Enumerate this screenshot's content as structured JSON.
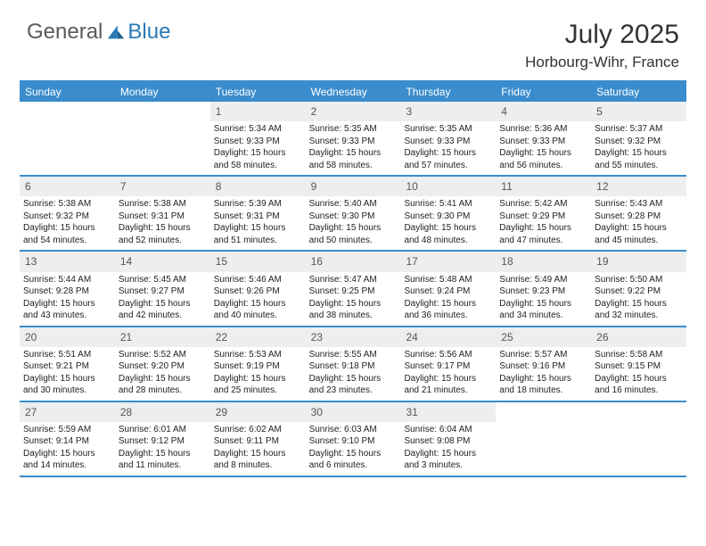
{
  "brand": {
    "general": "General",
    "blue": "Blue"
  },
  "title": {
    "month": "July 2025",
    "location": "Horbourg-Wihr, France"
  },
  "colors": {
    "accent": "#3a8ccc",
    "daynum_bg": "#eceeef",
    "text": "#222222",
    "header_text": "#ffffff"
  },
  "day_headers": [
    "Sunday",
    "Monday",
    "Tuesday",
    "Wednesday",
    "Thursday",
    "Friday",
    "Saturday"
  ],
  "weeks": [
    [
      {
        "empty": true
      },
      {
        "empty": true
      },
      {
        "num": "1",
        "sunrise": "Sunrise: 5:34 AM",
        "sunset": "Sunset: 9:33 PM",
        "daylight1": "Daylight: 15 hours",
        "daylight2": "and 58 minutes."
      },
      {
        "num": "2",
        "sunrise": "Sunrise: 5:35 AM",
        "sunset": "Sunset: 9:33 PM",
        "daylight1": "Daylight: 15 hours",
        "daylight2": "and 58 minutes."
      },
      {
        "num": "3",
        "sunrise": "Sunrise: 5:35 AM",
        "sunset": "Sunset: 9:33 PM",
        "daylight1": "Daylight: 15 hours",
        "daylight2": "and 57 minutes."
      },
      {
        "num": "4",
        "sunrise": "Sunrise: 5:36 AM",
        "sunset": "Sunset: 9:33 PM",
        "daylight1": "Daylight: 15 hours",
        "daylight2": "and 56 minutes."
      },
      {
        "num": "5",
        "sunrise": "Sunrise: 5:37 AM",
        "sunset": "Sunset: 9:32 PM",
        "daylight1": "Daylight: 15 hours",
        "daylight2": "and 55 minutes."
      }
    ],
    [
      {
        "num": "6",
        "sunrise": "Sunrise: 5:38 AM",
        "sunset": "Sunset: 9:32 PM",
        "daylight1": "Daylight: 15 hours",
        "daylight2": "and 54 minutes."
      },
      {
        "num": "7",
        "sunrise": "Sunrise: 5:38 AM",
        "sunset": "Sunset: 9:31 PM",
        "daylight1": "Daylight: 15 hours",
        "daylight2": "and 52 minutes."
      },
      {
        "num": "8",
        "sunrise": "Sunrise: 5:39 AM",
        "sunset": "Sunset: 9:31 PM",
        "daylight1": "Daylight: 15 hours",
        "daylight2": "and 51 minutes."
      },
      {
        "num": "9",
        "sunrise": "Sunrise: 5:40 AM",
        "sunset": "Sunset: 9:30 PM",
        "daylight1": "Daylight: 15 hours",
        "daylight2": "and 50 minutes."
      },
      {
        "num": "10",
        "sunrise": "Sunrise: 5:41 AM",
        "sunset": "Sunset: 9:30 PM",
        "daylight1": "Daylight: 15 hours",
        "daylight2": "and 48 minutes."
      },
      {
        "num": "11",
        "sunrise": "Sunrise: 5:42 AM",
        "sunset": "Sunset: 9:29 PM",
        "daylight1": "Daylight: 15 hours",
        "daylight2": "and 47 minutes."
      },
      {
        "num": "12",
        "sunrise": "Sunrise: 5:43 AM",
        "sunset": "Sunset: 9:28 PM",
        "daylight1": "Daylight: 15 hours",
        "daylight2": "and 45 minutes."
      }
    ],
    [
      {
        "num": "13",
        "sunrise": "Sunrise: 5:44 AM",
        "sunset": "Sunset: 9:28 PM",
        "daylight1": "Daylight: 15 hours",
        "daylight2": "and 43 minutes."
      },
      {
        "num": "14",
        "sunrise": "Sunrise: 5:45 AM",
        "sunset": "Sunset: 9:27 PM",
        "daylight1": "Daylight: 15 hours",
        "daylight2": "and 42 minutes."
      },
      {
        "num": "15",
        "sunrise": "Sunrise: 5:46 AM",
        "sunset": "Sunset: 9:26 PM",
        "daylight1": "Daylight: 15 hours",
        "daylight2": "and 40 minutes."
      },
      {
        "num": "16",
        "sunrise": "Sunrise: 5:47 AM",
        "sunset": "Sunset: 9:25 PM",
        "daylight1": "Daylight: 15 hours",
        "daylight2": "and 38 minutes."
      },
      {
        "num": "17",
        "sunrise": "Sunrise: 5:48 AM",
        "sunset": "Sunset: 9:24 PM",
        "daylight1": "Daylight: 15 hours",
        "daylight2": "and 36 minutes."
      },
      {
        "num": "18",
        "sunrise": "Sunrise: 5:49 AM",
        "sunset": "Sunset: 9:23 PM",
        "daylight1": "Daylight: 15 hours",
        "daylight2": "and 34 minutes."
      },
      {
        "num": "19",
        "sunrise": "Sunrise: 5:50 AM",
        "sunset": "Sunset: 9:22 PM",
        "daylight1": "Daylight: 15 hours",
        "daylight2": "and 32 minutes."
      }
    ],
    [
      {
        "num": "20",
        "sunrise": "Sunrise: 5:51 AM",
        "sunset": "Sunset: 9:21 PM",
        "daylight1": "Daylight: 15 hours",
        "daylight2": "and 30 minutes."
      },
      {
        "num": "21",
        "sunrise": "Sunrise: 5:52 AM",
        "sunset": "Sunset: 9:20 PM",
        "daylight1": "Daylight: 15 hours",
        "daylight2": "and 28 minutes."
      },
      {
        "num": "22",
        "sunrise": "Sunrise: 5:53 AM",
        "sunset": "Sunset: 9:19 PM",
        "daylight1": "Daylight: 15 hours",
        "daylight2": "and 25 minutes."
      },
      {
        "num": "23",
        "sunrise": "Sunrise: 5:55 AM",
        "sunset": "Sunset: 9:18 PM",
        "daylight1": "Daylight: 15 hours",
        "daylight2": "and 23 minutes."
      },
      {
        "num": "24",
        "sunrise": "Sunrise: 5:56 AM",
        "sunset": "Sunset: 9:17 PM",
        "daylight1": "Daylight: 15 hours",
        "daylight2": "and 21 minutes."
      },
      {
        "num": "25",
        "sunrise": "Sunrise: 5:57 AM",
        "sunset": "Sunset: 9:16 PM",
        "daylight1": "Daylight: 15 hours",
        "daylight2": "and 18 minutes."
      },
      {
        "num": "26",
        "sunrise": "Sunrise: 5:58 AM",
        "sunset": "Sunset: 9:15 PM",
        "daylight1": "Daylight: 15 hours",
        "daylight2": "and 16 minutes."
      }
    ],
    [
      {
        "num": "27",
        "sunrise": "Sunrise: 5:59 AM",
        "sunset": "Sunset: 9:14 PM",
        "daylight1": "Daylight: 15 hours",
        "daylight2": "and 14 minutes."
      },
      {
        "num": "28",
        "sunrise": "Sunrise: 6:01 AM",
        "sunset": "Sunset: 9:12 PM",
        "daylight1": "Daylight: 15 hours",
        "daylight2": "and 11 minutes."
      },
      {
        "num": "29",
        "sunrise": "Sunrise: 6:02 AM",
        "sunset": "Sunset: 9:11 PM",
        "daylight1": "Daylight: 15 hours",
        "daylight2": "and 8 minutes."
      },
      {
        "num": "30",
        "sunrise": "Sunrise: 6:03 AM",
        "sunset": "Sunset: 9:10 PM",
        "daylight1": "Daylight: 15 hours",
        "daylight2": "and 6 minutes."
      },
      {
        "num": "31",
        "sunrise": "Sunrise: 6:04 AM",
        "sunset": "Sunset: 9:08 PM",
        "daylight1": "Daylight: 15 hours",
        "daylight2": "and 3 minutes."
      },
      {
        "empty": true
      },
      {
        "empty": true
      }
    ]
  ]
}
